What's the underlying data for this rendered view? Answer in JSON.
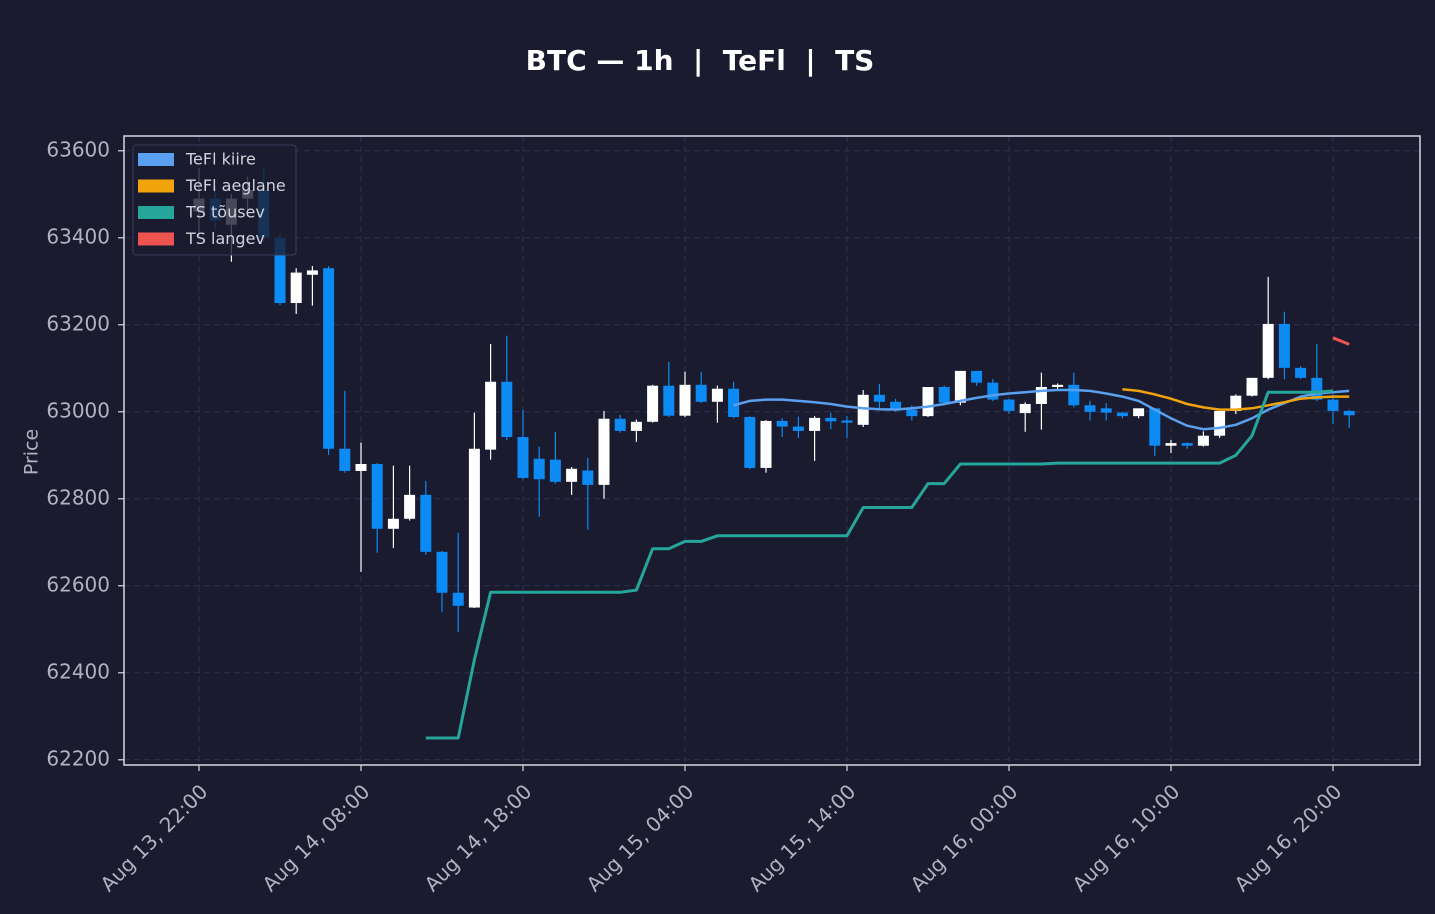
{
  "chart_data": {
    "type": "candlestick",
    "title": "BTC — 1h  |  TeFl  |  TS",
    "ylabel": "Price",
    "x": [
      "Aug 13, 22:00",
      "Aug 13, 23:00",
      "Aug 14, 00:00",
      "Aug 14, 01:00",
      "Aug 14, 02:00",
      "Aug 14, 03:00",
      "Aug 14, 04:00",
      "Aug 14, 05:00",
      "Aug 14, 06:00",
      "Aug 14, 07:00",
      "Aug 14, 08:00",
      "Aug 14, 09:00",
      "Aug 14, 10:00",
      "Aug 14, 11:00",
      "Aug 14, 12:00",
      "Aug 14, 13:00",
      "Aug 14, 14:00",
      "Aug 14, 15:00",
      "Aug 14, 16:00",
      "Aug 14, 17:00",
      "Aug 14, 18:00",
      "Aug 14, 19:00",
      "Aug 14, 20:00",
      "Aug 14, 21:00",
      "Aug 14, 22:00",
      "Aug 14, 23:00",
      "Aug 15, 00:00",
      "Aug 15, 01:00",
      "Aug 15, 02:00",
      "Aug 15, 03:00",
      "Aug 15, 04:00",
      "Aug 15, 05:00",
      "Aug 15, 06:00",
      "Aug 15, 07:00",
      "Aug 15, 08:00",
      "Aug 15, 09:00",
      "Aug 15, 10:00",
      "Aug 15, 11:00",
      "Aug 15, 12:00",
      "Aug 15, 13:00",
      "Aug 15, 14:00",
      "Aug 15, 15:00",
      "Aug 15, 16:00",
      "Aug 15, 17:00",
      "Aug 15, 18:00",
      "Aug 15, 19:00",
      "Aug 15, 20:00",
      "Aug 15, 21:00",
      "Aug 15, 22:00",
      "Aug 15, 23:00",
      "Aug 16, 00:00",
      "Aug 16, 01:00",
      "Aug 16, 02:00",
      "Aug 16, 03:00",
      "Aug 16, 04:00",
      "Aug 16, 05:00",
      "Aug 16, 06:00",
      "Aug 16, 07:00",
      "Aug 16, 08:00",
      "Aug 16, 09:00",
      "Aug 16, 10:00",
      "Aug 16, 11:00",
      "Aug 16, 12:00",
      "Aug 16, 13:00",
      "Aug 16, 14:00",
      "Aug 16, 15:00",
      "Aug 16, 16:00",
      "Aug 16, 17:00",
      "Aug 16, 18:00",
      "Aug 16, 19:00",
      "Aug 16, 20:00",
      "Aug 16, 21:00"
    ],
    "open": [
      63460,
      63490,
      63430,
      63490,
      63510,
      63400,
      63250,
      63315,
      63330,
      62915,
      62864,
      62880,
      62731,
      62754,
      62809,
      62678,
      62584,
      62550,
      62913,
      63069,
      62942,
      62892,
      62890,
      62839,
      62865,
      62832,
      62984,
      62956,
      62977,
      63060,
      62991,
      63062,
      63023,
      63053,
      62988,
      62871,
      62979,
      62966,
      62956,
      62986,
      62980,
      62970,
      63039,
      63023,
      63005,
      62990,
      63057,
      63021,
      63094,
      63067,
      63028,
      62997,
      63018,
      63057,
      63062,
      63015,
      63008,
      62998,
      62990,
      63008,
      62922,
      62928,
      62922,
      62945,
      63002,
      63037,
      63078,
      63202,
      63101,
      63078,
      63028,
      63002
    ],
    "high": [
      63560,
      63520,
      63500,
      63540,
      63560,
      63410,
      63330,
      63335,
      63335,
      63048,
      62929,
      62882,
      62876,
      62876,
      62841,
      62680,
      62722,
      62998,
      63156,
      63175,
      63005,
      62920,
      62954,
      62873,
      62894,
      63002,
      62993,
      62982,
      63062,
      63115,
      63092,
      63092,
      63060,
      63069,
      62990,
      62981,
      62985,
      62989,
      62990,
      62998,
      62990,
      63050,
      63064,
      63030,
      63015,
      63057,
      63060,
      63094,
      63094,
      63075,
      63030,
      63022,
      63090,
      63065,
      63090,
      63025,
      63020,
      63000,
      63008,
      63008,
      62935,
      62930,
      62955,
      63002,
      63040,
      63078,
      63310,
      63230,
      63105,
      63156,
      63040,
      63005
    ],
    "low": [
      63400,
      63420,
      63345,
      63460,
      63390,
      63245,
      63225,
      63244,
      62901,
      62860,
      62632,
      62676,
      62687,
      62750,
      62671,
      62540,
      62494,
      62549,
      62890,
      62935,
      62845,
      62759,
      62835,
      62809,
      62729,
      62800,
      62952,
      62931,
      62975,
      62988,
      62988,
      63020,
      62975,
      62985,
      62868,
      62860,
      62942,
      62940,
      62887,
      62960,
      62940,
      62965,
      63005,
      63000,
      62980,
      62988,
      63015,
      63015,
      63060,
      63025,
      62995,
      62954,
      62959,
      63050,
      63010,
      62980,
      62980,
      62985,
      62985,
      62899,
      62905,
      62915,
      62920,
      62940,
      62995,
      63035,
      63075,
      63075,
      63075,
      63025,
      62972,
      62963
    ],
    "close": [
      63490,
      63440,
      63490,
      63510,
      63400,
      63250,
      63320,
      63325,
      62915,
      62864,
      62880,
      62731,
      62754,
      62809,
      62678,
      62584,
      62554,
      62915,
      63069,
      62942,
      62848,
      62845,
      62839,
      62869,
      62832,
      62984,
      62956,
      62977,
      63060,
      62991,
      63062,
      63023,
      63053,
      62988,
      62871,
      62979,
      62966,
      62956,
      62986,
      62978,
      62975,
      63039,
      63023,
      63005,
      62990,
      63057,
      63021,
      63094,
      63067,
      63028,
      63002,
      63018,
      63057,
      63062,
      63015,
      63000,
      62998,
      62990,
      63008,
      62922,
      62928,
      62922,
      62945,
      63002,
      63037,
      63078,
      63202,
      63101,
      63078,
      63028,
      63002,
      62992
    ],
    "up_color": "#ffffff",
    "down_color": "#0d8bf5",
    "series": [
      {
        "name": "TeFl kiire",
        "color": "#5aa0f0",
        "values": [
          null,
          null,
          null,
          null,
          null,
          null,
          null,
          null,
          null,
          null,
          null,
          null,
          null,
          null,
          null,
          null,
          null,
          null,
          null,
          null,
          null,
          null,
          null,
          null,
          null,
          null,
          null,
          null,
          null,
          null,
          null,
          null,
          null,
          63015,
          63025,
          63028,
          63028,
          63025,
          63022,
          63018,
          63012,
          63008,
          63006,
          63005,
          63008,
          63012,
          63018,
          63025,
          63032,
          63038,
          63042,
          63045,
          63048,
          63050,
          63050,
          63048,
          63042,
          63035,
          63025,
          63005,
          62985,
          62968,
          62960,
          62963,
          62970,
          62985,
          63005,
          63020,
          63035,
          63042,
          63045,
          63048
        ]
      },
      {
        "name": "TeFl aeglane",
        "color": "#f0a30a",
        "values": [
          null,
          null,
          null,
          null,
          null,
          null,
          null,
          null,
          null,
          null,
          null,
          null,
          null,
          null,
          null,
          null,
          null,
          null,
          null,
          null,
          null,
          null,
          null,
          null,
          null,
          null,
          null,
          null,
          null,
          null,
          null,
          null,
          null,
          null,
          null,
          null,
          null,
          null,
          null,
          null,
          null,
          null,
          null,
          null,
          null,
          null,
          null,
          null,
          null,
          null,
          null,
          null,
          null,
          null,
          null,
          null,
          null,
          63052,
          63048,
          63040,
          63030,
          63018,
          63010,
          63005,
          63005,
          63008,
          63015,
          63022,
          63030,
          63033,
          63035,
          63035
        ]
      },
      {
        "name": "TS tõusev",
        "color": "#26a69a",
        "values": [
          null,
          null,
          null,
          null,
          null,
          null,
          null,
          null,
          null,
          null,
          null,
          null,
          null,
          null,
          62250,
          62250,
          62250,
          62430,
          62585,
          62585,
          62585,
          62585,
          62585,
          62585,
          62585,
          62585,
          62585,
          62590,
          62685,
          62685,
          62702,
          62702,
          62715,
          62715,
          62715,
          62715,
          62715,
          62715,
          62715,
          62715,
          62715,
          62780,
          62780,
          62780,
          62780,
          62835,
          62835,
          62880,
          62880,
          62880,
          62880,
          62880,
          62880,
          62882,
          62882,
          62882,
          62882,
          62882,
          62882,
          62882,
          62882,
          62882,
          62882,
          62882,
          62900,
          62945,
          63045,
          63045,
          63045,
          63045,
          63048,
          null
        ]
      },
      {
        "name": "TS langev",
        "color": "#ef5350",
        "values": [
          null,
          null,
          null,
          null,
          null,
          null,
          null,
          null,
          null,
          null,
          null,
          null,
          null,
          null,
          null,
          null,
          null,
          null,
          null,
          null,
          null,
          null,
          null,
          null,
          null,
          null,
          null,
          null,
          null,
          null,
          null,
          null,
          null,
          null,
          null,
          null,
          null,
          null,
          null,
          null,
          null,
          null,
          null,
          null,
          null,
          null,
          null,
          null,
          null,
          null,
          null,
          null,
          null,
          null,
          null,
          null,
          null,
          null,
          null,
          null,
          null,
          null,
          null,
          null,
          null,
          null,
          null,
          null,
          null,
          null,
          63170,
          63155
        ]
      }
    ],
    "ylim": [
      62188,
      63634
    ],
    "yticks": [
      62200,
      62400,
      62600,
      62800,
      63000,
      63200,
      63400,
      63600
    ],
    "xticks": [
      "Aug 13, 22:00",
      "Aug 14, 08:00",
      "Aug 14, 18:00",
      "Aug 15, 04:00",
      "Aug 15, 14:00",
      "Aug 16, 00:00",
      "Aug 16, 10:00",
      "Aug 16, 20:00"
    ],
    "grid": true,
    "legend": "upper left"
  }
}
